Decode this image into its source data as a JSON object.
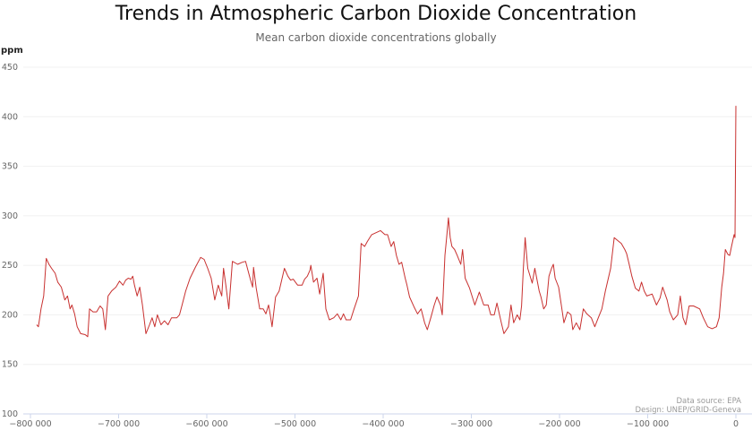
{
  "chart_data": {
    "type": "line",
    "title": "Trends in Atmospheric Carbon Dioxide Concentration",
    "subtitle": "Mean carbon dioxide concentrations globally",
    "ylabel": "ppm",
    "xlabel": "",
    "xlim": [
      -800000,
      0
    ],
    "ylim": [
      100,
      450
    ],
    "grid": true,
    "line_color": "#c8302f",
    "yticks": [
      "100",
      "150",
      "200",
      "250",
      "300",
      "350",
      "400",
      "450"
    ],
    "xticks": [
      "−800 000",
      "−700 000",
      "−600 000",
      "−500 000",
      "−400 000",
      "−300 000",
      "−200 000",
      "−100 000",
      "0"
    ],
    "x": [
      -793000,
      -791000,
      -788000,
      -785000,
      -782000,
      -779000,
      -776000,
      -772000,
      -769000,
      -765000,
      -761000,
      -758000,
      -755000,
      -753000,
      -750000,
      -747000,
      -743000,
      -738000,
      -735000,
      -733000,
      -729000,
      -725000,
      -721000,
      -718000,
      -715000,
      -712000,
      -708000,
      -703000,
      -699000,
      -695000,
      -692000,
      -689000,
      -686000,
      -684000,
      -682000,
      -679000,
      -676000,
      -673000,
      -669000,
      -665000,
      -662000,
      -659000,
      -656000,
      -652000,
      -648000,
      -644000,
      -640000,
      -634000,
      -631000,
      -628000,
      -624000,
      -619000,
      -613000,
      -607000,
      -603000,
      -599000,
      -595000,
      -591000,
      -587000,
      -583000,
      -581000,
      -578000,
      -575000,
      -571000,
      -565000,
      -560000,
      -556000,
      -551000,
      -548000,
      -547000,
      -544000,
      -540000,
      -536000,
      -533000,
      -530000,
      -528000,
      -526000,
      -522000,
      -518000,
      -512000,
      -508000,
      -505000,
      -502000,
      -497000,
      -492000,
      -489000,
      -486000,
      -483000,
      -482000,
      -479000,
      -475000,
      -472000,
      -468000,
      -465000,
      -461000,
      -456000,
      -452000,
      -448000,
      -445000,
      -442000,
      -437000,
      -433000,
      -428000,
      -425000,
      -421000,
      -418000,
      -413000,
      -408000,
      -403000,
      -398000,
      -395000,
      -391000,
      -388000,
      -385000,
      -382000,
      -379000,
      -375000,
      -373000,
      -370000,
      -365000,
      -361000,
      -357000,
      -353000,
      -350000,
      -346000,
      -342000,
      -339000,
      -335000,
      -333000,
      -330000,
      -328000,
      -326000,
      -324000,
      -322000,
      -319000,
      -316000,
      -312000,
      -310000,
      -307000,
      -302000,
      -296000,
      -291000,
      -286000,
      -281000,
      -278000,
      -274000,
      -271000,
      -269000,
      -266000,
      -263000,
      -258000,
      -255000,
      -252000,
      -248000,
      -245000,
      -243000,
      -241000,
      -239000,
      -236000,
      -231000,
      -228000,
      -223000,
      -221000,
      -218000,
      -215000,
      -212000,
      -209000,
      -207000,
      -205000,
      -201000,
      -198000,
      -195000,
      -191000,
      -187000,
      -185000,
      -181000,
      -177000,
      -173000,
      -169000,
      -164000,
      -160000,
      -156000,
      -152000,
      -148000,
      -142000,
      -138000,
      -134000,
      -130000,
      -126000,
      -124000,
      -121000,
      -118000,
      -114000,
      -110000,
      -107000,
      -104000,
      -101000,
      -95000,
      -90000,
      -86000,
      -83000,
      -78000,
      -75000,
      -71000,
      -66000,
      -63000,
      -60000,
      -57000,
      -53000,
      -48000,
      -41000,
      -37000,
      -32000,
      -27000,
      -22000,
      -19000,
      -16000,
      -14000,
      -12000,
      -9000,
      -7000,
      -5000,
      -2000,
      -1000,
      0
    ],
    "y": [
      190,
      188,
      206,
      219,
      257,
      251,
      247,
      242,
      233,
      228,
      215,
      219,
      206,
      210,
      201,
      188,
      181,
      180,
      178,
      206,
      203,
      203,
      209,
      206,
      185,
      219,
      224,
      228,
      234,
      230,
      235,
      237,
      236,
      239,
      230,
      219,
      228,
      210,
      181,
      190,
      197,
      188,
      200,
      190,
      194,
      190,
      197,
      197,
      200,
      210,
      224,
      237,
      248,
      258,
      256,
      247,
      237,
      215,
      230,
      219,
      247,
      227,
      206,
      254,
      251,
      253,
      254,
      237,
      228,
      248,
      227,
      206,
      206,
      201,
      210,
      200,
      188,
      218,
      224,
      247,
      239,
      235,
      236,
      230,
      230,
      236,
      239,
      245,
      250,
      233,
      237,
      221,
      242,
      206,
      195,
      197,
      201,
      195,
      201,
      195,
      195,
      206,
      219,
      272,
      269,
      274,
      281,
      283,
      285,
      281,
      281,
      269,
      274,
      260,
      251,
      253,
      237,
      230,
      218,
      208,
      201,
      206,
      192,
      185,
      197,
      210,
      218,
      210,
      200,
      260,
      278,
      298,
      278,
      269,
      266,
      260,
      251,
      266,
      237,
      227,
      210,
      223,
      210,
      210,
      200,
      200,
      212,
      204,
      192,
      181,
      188,
      210,
      192,
      200,
      195,
      209,
      247,
      278,
      247,
      232,
      247,
      224,
      218,
      206,
      210,
      239,
      247,
      251,
      237,
      228,
      210,
      192,
      203,
      200,
      185,
      192,
      185,
      206,
      201,
      197,
      188,
      197,
      206,
      224,
      247,
      278,
      275,
      272,
      266,
      262,
      251,
      239,
      227,
      224,
      233,
      224,
      219,
      221,
      210,
      217,
      228,
      215,
      203,
      195,
      200,
      219,
      197,
      190,
      209,
      209,
      206,
      197,
      188,
      186,
      188,
      197,
      228,
      242,
      266,
      261,
      260,
      269,
      281,
      278,
      411
    ]
  },
  "credits": {
    "source": "Data source: EPA",
    "design": "Design: UNEP/GRID-Geneva"
  }
}
